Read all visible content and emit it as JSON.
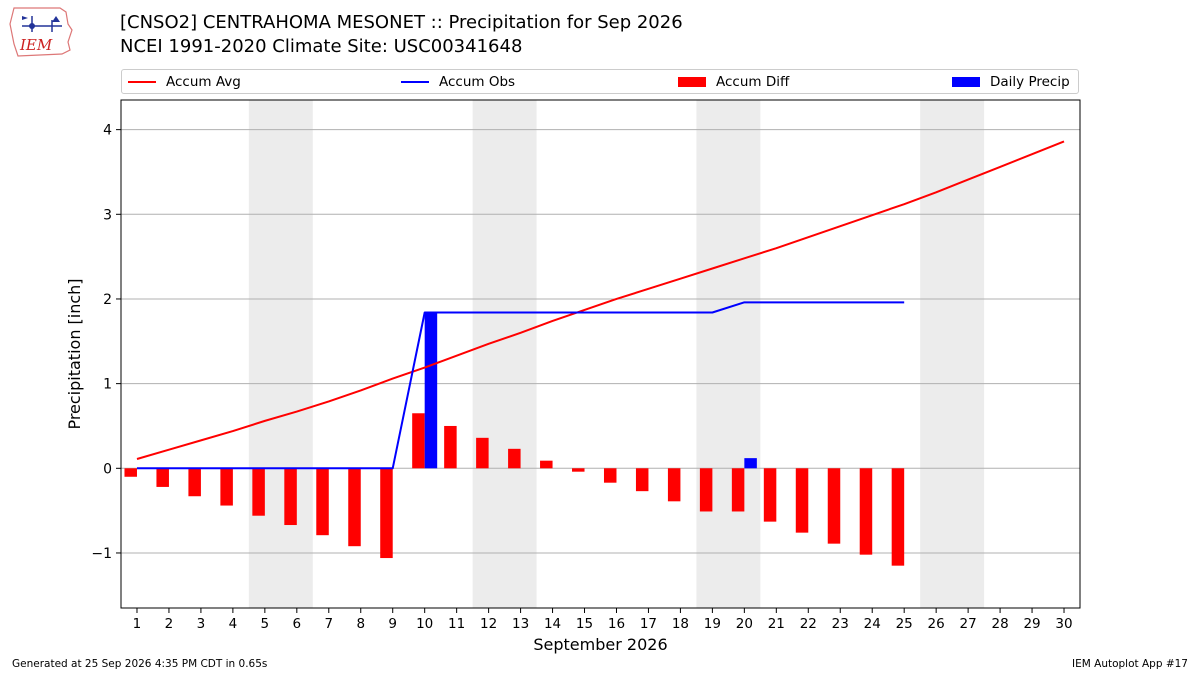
{
  "header": {
    "logo_text": "IEM",
    "title_line1": "[CNSO2] CENTRAHOMA MESONET :: Precipitation for Sep 2026",
    "title_line2": "NCEI 1991-2020 Climate Site: USC00341648"
  },
  "footer": {
    "generated": "Generated at 25 Sep 2026 4:35 PM CDT in 0.65s",
    "app": "IEM Autoplot App #17"
  },
  "colors": {
    "avg": "#ff0000",
    "obs": "#0000ff",
    "diff": "#ff0000",
    "daily": "#0000ff",
    "weekend_shade": "#ececec",
    "grid": "#b0b0b0"
  },
  "chart_data": {
    "type": "line",
    "xlabel": "September 2026",
    "ylabel": "Precipitation [inch]",
    "xlim": [
      0.5,
      30.5
    ],
    "ylim": [
      -1.65,
      4.35
    ],
    "x_ticks": [
      1,
      2,
      3,
      4,
      5,
      6,
      7,
      8,
      9,
      10,
      11,
      12,
      13,
      14,
      15,
      16,
      17,
      18,
      19,
      20,
      21,
      22,
      23,
      24,
      25,
      26,
      27,
      28,
      29,
      30
    ],
    "y_ticks": [
      -1,
      0,
      1,
      2,
      3,
      4
    ],
    "y_tick_labels": [
      "−1",
      "0",
      "1",
      "2",
      "3",
      "4"
    ],
    "grid": "horizontal",
    "legend_position": "top",
    "shaded_day_ranges": [
      [
        4.5,
        6.5
      ],
      [
        11.5,
        13.5
      ],
      [
        18.5,
        20.5
      ],
      [
        25.5,
        27.5
      ]
    ],
    "series": [
      {
        "name": "Accum Avg",
        "kind": "line",
        "x": [
          1,
          2,
          3,
          4,
          5,
          6,
          7,
          8,
          9,
          10,
          11,
          12,
          13,
          14,
          15,
          16,
          17,
          18,
          19,
          20,
          21,
          22,
          23,
          24,
          25,
          26,
          27,
          28,
          29,
          30
        ],
        "values": [
          0.11,
          0.22,
          0.33,
          0.44,
          0.56,
          0.67,
          0.79,
          0.92,
          1.06,
          1.19,
          1.33,
          1.47,
          1.6,
          1.74,
          1.87,
          2.0,
          2.12,
          2.24,
          2.36,
          2.48,
          2.6,
          2.73,
          2.86,
          2.99,
          3.12,
          3.26,
          3.41,
          3.56,
          3.71,
          3.86
        ]
      },
      {
        "name": "Accum Obs",
        "kind": "line",
        "x": [
          1,
          2,
          3,
          4,
          5,
          6,
          7,
          8,
          9,
          10,
          11,
          12,
          13,
          14,
          15,
          16,
          17,
          18,
          19,
          20,
          21,
          22,
          23,
          24,
          25
        ],
        "values": [
          0,
          0,
          0,
          0,
          0,
          0,
          0,
          0,
          0,
          1.84,
          1.84,
          1.84,
          1.84,
          1.84,
          1.84,
          1.84,
          1.84,
          1.84,
          1.84,
          1.96,
          1.96,
          1.96,
          1.96,
          1.96,
          1.96
        ]
      },
      {
        "name": "Accum Diff",
        "kind": "bar",
        "x": [
          1,
          2,
          3,
          4,
          5,
          6,
          7,
          8,
          9,
          10,
          11,
          12,
          13,
          14,
          15,
          16,
          17,
          18,
          19,
          20,
          21,
          22,
          23,
          24,
          25
        ],
        "values": [
          -0.1,
          -0.22,
          -0.33,
          -0.44,
          -0.56,
          -0.67,
          -0.79,
          -0.92,
          -1.06,
          0.65,
          0.5,
          0.36,
          0.23,
          0.09,
          -0.04,
          -0.17,
          -0.27,
          -0.39,
          -0.51,
          -0.51,
          -0.63,
          -0.76,
          -0.89,
          -1.02,
          -1.15
        ]
      },
      {
        "name": "Daily Precip",
        "kind": "bar",
        "x": [
          1,
          2,
          3,
          4,
          5,
          6,
          7,
          8,
          9,
          10,
          11,
          12,
          13,
          14,
          15,
          16,
          17,
          18,
          19,
          20,
          21,
          22,
          23,
          24,
          25
        ],
        "values": [
          0,
          0,
          0,
          0,
          0,
          0,
          0,
          0,
          0,
          1.84,
          0,
          0,
          0,
          0,
          0,
          0,
          0,
          0,
          0,
          0.12,
          0,
          0,
          0,
          0,
          0
        ]
      }
    ]
  }
}
